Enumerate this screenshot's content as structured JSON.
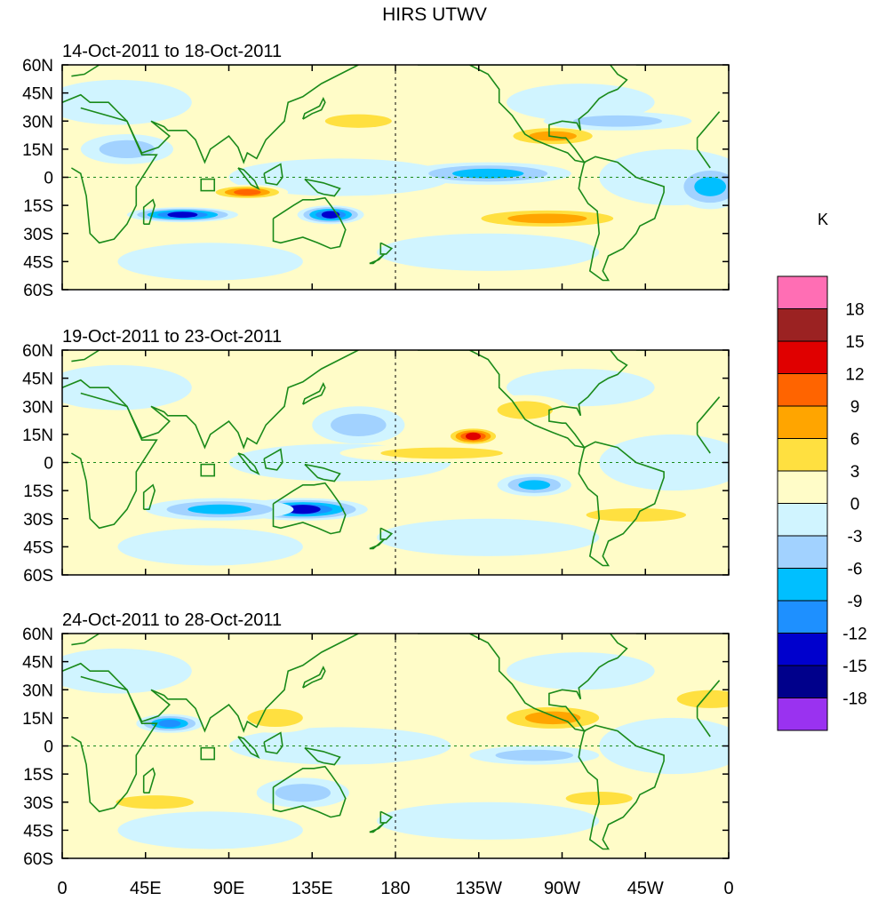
{
  "title": "HIRS UTWV",
  "panels": [
    {
      "id": "p1",
      "label": "14-Oct-2011 to 18-Oct-2011",
      "blobs": [
        {
          "lon": 100,
          "lat": -8,
          "rx": 22,
          "ry": 4,
          "v": 11
        },
        {
          "lon": 65,
          "lat": -20,
          "rx": 30,
          "ry": 4,
          "v": -14
        },
        {
          "lon": 145,
          "lat": -20,
          "rx": 18,
          "ry": 5,
          "v": -14
        },
        {
          "lon": 265,
          "lat": 22,
          "rx": 30,
          "ry": 6,
          "v": 9
        },
        {
          "lon": 262,
          "lat": -22,
          "rx": 50,
          "ry": 6,
          "v": 8
        },
        {
          "lon": 230,
          "lat": 2,
          "rx": 45,
          "ry": 6,
          "v": -9
        },
        {
          "lon": 350,
          "lat": -5,
          "rx": 20,
          "ry": 12,
          "v": -9
        },
        {
          "lon": 160,
          "lat": 30,
          "rx": 30,
          "ry": 6,
          "v": 6
        },
        {
          "lon": 300,
          "lat": 30,
          "rx": 40,
          "ry": 5,
          "v": -5
        },
        {
          "lon": 35,
          "lat": 15,
          "rx": 25,
          "ry": 8,
          "v": -6
        }
      ]
    },
    {
      "id": "p2",
      "label": "19-Oct-2011 to 23-Oct-2011",
      "blobs": [
        {
          "lon": 205,
          "lat": 5,
          "rx": 55,
          "ry": 5,
          "v": 7
        },
        {
          "lon": 222,
          "lat": 14,
          "rx": 15,
          "ry": 5,
          "v": 15
        },
        {
          "lon": 250,
          "lat": 28,
          "rx": 25,
          "ry": 8,
          "v": 6
        },
        {
          "lon": 130,
          "lat": -25,
          "rx": 35,
          "ry": 6,
          "v": -14
        },
        {
          "lon": 85,
          "lat": -25,
          "rx": 40,
          "ry": 6,
          "v": -9
        },
        {
          "lon": 310,
          "lat": -28,
          "rx": 45,
          "ry": 6,
          "v": 7
        },
        {
          "lon": 255,
          "lat": -12,
          "rx": 20,
          "ry": 6,
          "v": -8
        },
        {
          "lon": 160,
          "lat": 20,
          "rx": 25,
          "ry": 10,
          "v": -6
        }
      ]
    },
    {
      "id": "p3",
      "label": "24-Oct-2011 to 28-Oct-2011",
      "blobs": [
        {
          "lon": 58,
          "lat": 12,
          "rx": 18,
          "ry": 5,
          "v": -12
        },
        {
          "lon": 115,
          "lat": 15,
          "rx": 25,
          "ry": 8,
          "v": 7
        },
        {
          "lon": 265,
          "lat": 15,
          "rx": 35,
          "ry": 8,
          "v": 8
        },
        {
          "lon": 50,
          "lat": -30,
          "rx": 35,
          "ry": 6,
          "v": 7
        },
        {
          "lon": 130,
          "lat": -25,
          "rx": 25,
          "ry": 8,
          "v": -7
        },
        {
          "lon": 255,
          "lat": -5,
          "rx": 35,
          "ry": 5,
          "v": -7
        },
        {
          "lon": 350,
          "lat": 25,
          "rx": 30,
          "ry": 8,
          "v": 5
        },
        {
          "lon": 290,
          "lat": -28,
          "rx": 30,
          "ry": 6,
          "v": 5
        }
      ]
    }
  ],
  "axes": {
    "lat_labels": [
      "60N",
      "45N",
      "30N",
      "15N",
      "0",
      "15S",
      "30S",
      "45S",
      "60S"
    ],
    "lon_labels": [
      "0",
      "45E",
      "90E",
      "135E",
      "180",
      "135W",
      "90W",
      "45W",
      "0"
    ]
  },
  "colorbar": {
    "unit": "K",
    "labels": [
      "18",
      "15",
      "12",
      "9",
      "6",
      "3",
      "0",
      "-3",
      "-6",
      "-9",
      "-12",
      "-15",
      "-18"
    ],
    "colors": [
      "#ff6eb4",
      "#9b2222",
      "#e00000",
      "#ff6400",
      "#ffa500",
      "#ffe040",
      "#fffcc8",
      "#d0f4ff",
      "#a2d2ff",
      "#00bfff",
      "#1e90ff",
      "#0000cd",
      "#00008b",
      "#9a32f0"
    ]
  },
  "colors": {
    "coast": "#1a8a1a",
    "frame": "#000000",
    "text": "#000000"
  }
}
